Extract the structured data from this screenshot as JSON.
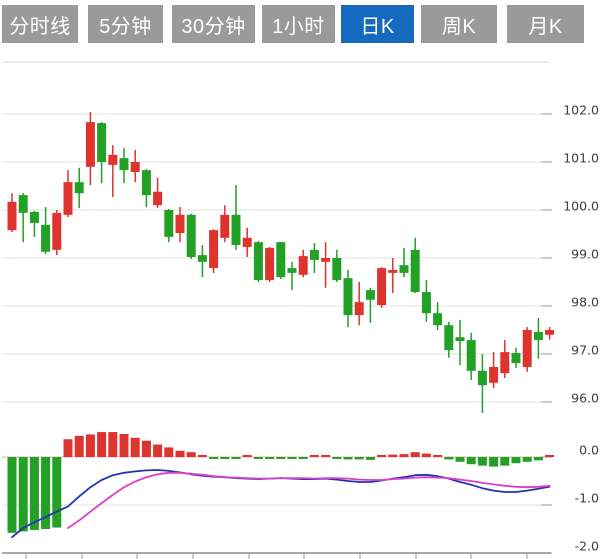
{
  "toolbar": {
    "tabs": [
      {
        "label": "分时线",
        "active": false
      },
      {
        "label": "5分钟",
        "active": false
      },
      {
        "label": "30分钟",
        "active": false
      },
      {
        "label": "1小时",
        "active": false
      },
      {
        "label": "日K",
        "active": true
      },
      {
        "label": "周K",
        "active": false
      },
      {
        "label": "月K",
        "active": false
      }
    ],
    "active_bg": "#1569bf",
    "inactive_bg": "#9a9a9a",
    "text_color": "#ffffff"
  },
  "chart_data": {
    "type": "candlestick+macd",
    "title": "",
    "convention": "red = rise, green = fall (CN market colors)",
    "price_axis": {
      "side": "right",
      "tick_labels": [
        "102.0",
        "101.0",
        "100.0",
        "99.0",
        "98.0",
        "97.0",
        "96.0"
      ],
      "tick_values": [
        102,
        101,
        100,
        99,
        98,
        97,
        96
      ],
      "range": [
        95.7,
        102.1
      ],
      "grid": true
    },
    "indicator_axis": {
      "side": "right",
      "tick_labels": [
        "0.0",
        "-1.0",
        "-2.0"
      ],
      "tick_values": [
        0,
        -1,
        -2
      ],
      "range": [
        -2.05,
        0.6
      ],
      "grid": true
    },
    "candles_ohlc": [
      [
        99.58,
        100.35,
        99.54,
        100.17
      ],
      [
        100.31,
        100.35,
        99.33,
        99.94
      ],
      [
        99.96,
        99.98,
        99.44,
        99.73
      ],
      [
        99.69,
        100.06,
        99.08,
        99.13
      ],
      [
        99.17,
        100.0,
        99.06,
        99.94
      ],
      [
        99.9,
        100.83,
        99.85,
        100.58
      ],
      [
        100.58,
        100.88,
        100.04,
        100.35
      ],
      [
        100.9,
        102.04,
        100.52,
        101.83
      ],
      [
        101.81,
        101.83,
        100.56,
        101.0
      ],
      [
        100.94,
        101.35,
        100.27,
        101.15
      ],
      [
        101.08,
        101.29,
        100.56,
        100.83
      ],
      [
        100.79,
        101.25,
        100.58,
        101.0
      ],
      [
        100.83,
        100.85,
        100.06,
        100.31
      ],
      [
        100.1,
        100.67,
        100.04,
        100.38
      ],
      [
        100.0,
        100.02,
        99.33,
        99.44
      ],
      [
        99.52,
        100.06,
        99.33,
        99.9
      ],
      [
        99.9,
        99.92,
        98.98,
        99.02
      ],
      [
        99.06,
        99.27,
        98.6,
        98.92
      ],
      [
        98.79,
        99.6,
        98.69,
        99.58
      ],
      [
        99.42,
        100.1,
        99.33,
        99.9
      ],
      [
        99.9,
        100.52,
        99.17,
        99.27
      ],
      [
        99.23,
        99.63,
        99.02,
        99.42
      ],
      [
        99.33,
        99.35,
        98.5,
        98.54
      ],
      [
        98.54,
        99.23,
        98.5,
        99.21
      ],
      [
        99.33,
        99.33,
        98.56,
        98.6
      ],
      [
        98.79,
        98.92,
        98.33,
        98.69
      ],
      [
        98.65,
        99.17,
        98.6,
        99.04
      ],
      [
        99.17,
        99.31,
        98.69,
        98.96
      ],
      [
        98.92,
        99.33,
        98.38,
        99.0
      ],
      [
        99.0,
        99.17,
        98.5,
        98.54
      ],
      [
        98.58,
        98.75,
        97.56,
        97.81
      ],
      [
        97.81,
        98.5,
        97.6,
        98.08
      ],
      [
        98.33,
        98.38,
        97.65,
        98.13
      ],
      [
        98.02,
        98.81,
        97.96,
        98.79
      ],
      [
        98.69,
        99.0,
        98.27,
        98.75
      ],
      [
        98.85,
        99.21,
        98.6,
        98.69
      ],
      [
        99.17,
        99.42,
        98.27,
        98.29
      ],
      [
        98.29,
        98.54,
        97.67,
        97.85
      ],
      [
        97.85,
        98.08,
        97.5,
        97.6
      ],
      [
        97.6,
        97.67,
        96.92,
        97.08
      ],
      [
        97.35,
        97.71,
        96.77,
        97.27
      ],
      [
        97.29,
        97.44,
        96.46,
        96.65
      ],
      [
        96.65,
        97.0,
        95.77,
        96.35
      ],
      [
        96.4,
        97.04,
        96.29,
        96.73
      ],
      [
        96.6,
        97.29,
        96.5,
        97.04
      ],
      [
        97.02,
        97.13,
        96.71,
        96.81
      ],
      [
        96.73,
        97.56,
        96.63,
        97.5
      ],
      [
        97.46,
        97.75,
        96.9,
        97.29
      ],
      [
        97.4,
        97.56,
        97.3,
        97.5
      ]
    ],
    "macd": {
      "histogram": [
        -1.58,
        -1.55,
        -1.52,
        -1.5,
        -1.47,
        0.37,
        0.44,
        0.47,
        0.52,
        0.52,
        0.48,
        0.4,
        0.34,
        0.26,
        0.2,
        0.13,
        0.1,
        0.04,
        -0.03,
        -0.04,
        -0.04,
        0.03,
        -0.03,
        -0.02,
        -0.03,
        -0.04,
        -0.04,
        0.02,
        0.04,
        -0.03,
        -0.05,
        -0.05,
        -0.06,
        0.04,
        0.05,
        0.06,
        0.1,
        0.07,
        0.03,
        -0.05,
        -0.1,
        -0.15,
        -0.18,
        -0.2,
        -0.18,
        -0.13,
        -0.1,
        -0.07,
        0.04
      ],
      "dif_line": [
        -1.67,
        -1.48,
        -1.36,
        -1.25,
        -1.14,
        -1.03,
        -0.82,
        -0.63,
        -0.48,
        -0.38,
        -0.33,
        -0.3,
        -0.28,
        -0.27,
        -0.29,
        -0.32,
        -0.36,
        -0.39,
        -0.41,
        -0.42,
        -0.44,
        -0.45,
        -0.46,
        -0.45,
        -0.44,
        -0.45,
        -0.46,
        -0.46,
        -0.45,
        -0.47,
        -0.5,
        -0.52,
        -0.52,
        -0.49,
        -0.45,
        -0.42,
        -0.38,
        -0.37,
        -0.4,
        -0.45,
        -0.52,
        -0.58,
        -0.65,
        -0.7,
        -0.73,
        -0.73,
        -0.7,
        -0.66,
        -0.62
      ],
      "dea_line": [
        null,
        null,
        null,
        null,
        null,
        -1.48,
        -1.32,
        -1.14,
        -0.96,
        -0.79,
        -0.63,
        -0.51,
        -0.42,
        -0.36,
        -0.33,
        -0.33,
        -0.35,
        -0.37,
        -0.4,
        -0.42,
        -0.43,
        -0.44,
        -0.45,
        -0.45,
        -0.44,
        -0.44,
        -0.44,
        -0.45,
        -0.44,
        -0.44,
        -0.45,
        -0.47,
        -0.48,
        -0.48,
        -0.46,
        -0.45,
        -0.43,
        -0.42,
        -0.43,
        -0.44,
        -0.47,
        -0.5,
        -0.54,
        -0.57,
        -0.6,
        -0.62,
        -0.63,
        -0.62,
        -0.6
      ]
    },
    "colors": {
      "up": "#dd342f",
      "down": "#23a126",
      "dif": "#2336ad",
      "dea": "#dd3ec8",
      "grid": "#e2e2e2",
      "axis_tick": "#ababab",
      "zero_line": "#eab0ac",
      "bottom_axis": "#a8a8a8",
      "label_text": "#3d3d3d"
    },
    "legend": "none"
  }
}
